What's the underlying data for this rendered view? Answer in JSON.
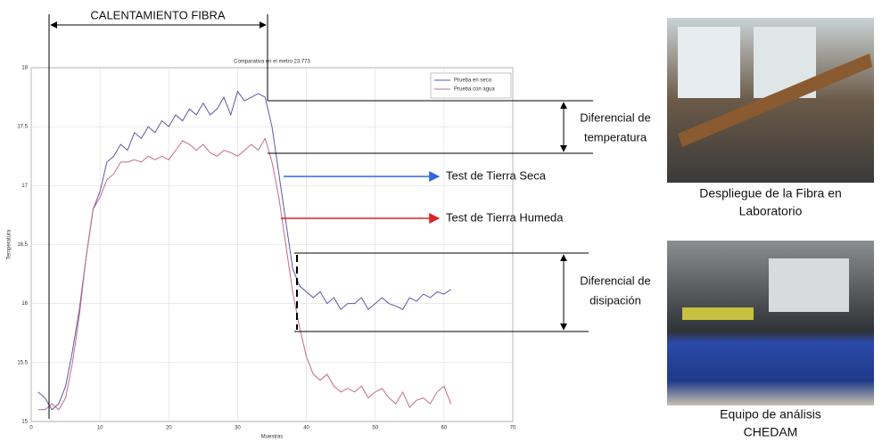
{
  "chart_data": {
    "type": "line",
    "title": "Comparativa en el metro 23.773",
    "x_label": "Muestras",
    "y_label": "Temperatura",
    "x": [
      1,
      2,
      3,
      4,
      5,
      6,
      7,
      8,
      9,
      10,
      11,
      12,
      13,
      14,
      15,
      16,
      17,
      18,
      19,
      20,
      21,
      22,
      23,
      24,
      25,
      26,
      27,
      28,
      29,
      30,
      31,
      32,
      33,
      34,
      35,
      36,
      37,
      38,
      39,
      40,
      41,
      42,
      43,
      44,
      45,
      46,
      47,
      48,
      49,
      50,
      51,
      52,
      53,
      54,
      55,
      56,
      57,
      58,
      59,
      60,
      61
    ],
    "series": [
      {
        "name": "Prueba en seco",
        "color": "#5a5aa8",
        "values": [
          15.25,
          15.2,
          15.1,
          15.15,
          15.3,
          15.6,
          15.95,
          16.4,
          16.8,
          16.95,
          17.2,
          17.25,
          17.35,
          17.3,
          17.45,
          17.4,
          17.5,
          17.45,
          17.55,
          17.5,
          17.6,
          17.55,
          17.65,
          17.6,
          17.7,
          17.6,
          17.65,
          17.75,
          17.6,
          17.8,
          17.72,
          17.75,
          17.78,
          17.75,
          17.5,
          17.1,
          16.7,
          16.3,
          16.15,
          16.1,
          16.05,
          16.1,
          16.0,
          16.05,
          15.95,
          16.0,
          16.0,
          16.05,
          15.95,
          16.0,
          16.05,
          16.0,
          15.98,
          15.95,
          16.05,
          16.02,
          16.08,
          16.05,
          16.1,
          16.08,
          16.12
        ]
      },
      {
        "name": "Prueba con agua",
        "color": "#c46a8a",
        "values": [
          15.1,
          15.1,
          15.15,
          15.1,
          15.2,
          15.5,
          15.9,
          16.4,
          16.8,
          16.9,
          17.05,
          17.1,
          17.2,
          17.2,
          17.22,
          17.2,
          17.25,
          17.22,
          17.25,
          17.22,
          17.3,
          17.38,
          17.35,
          17.3,
          17.35,
          17.28,
          17.25,
          17.3,
          17.28,
          17.25,
          17.3,
          17.35,
          17.3,
          17.4,
          17.2,
          16.9,
          16.5,
          16.1,
          15.8,
          15.55,
          15.4,
          15.35,
          15.4,
          15.3,
          15.25,
          15.28,
          15.25,
          15.3,
          15.2,
          15.25,
          15.28,
          15.2,
          15.15,
          15.25,
          15.12,
          15.18,
          15.2,
          15.15,
          15.25,
          15.3,
          15.15
        ]
      }
    ],
    "xlim": [
      0,
      70
    ],
    "xticks": [
      0,
      10,
      20,
      30,
      40,
      50,
      60,
      70
    ],
    "ylim": [
      15,
      18
    ],
    "yticks": [
      15,
      15.5,
      16,
      16.5,
      17,
      17.5,
      18
    ],
    "grid": true,
    "legend": "upper right"
  },
  "figure": {
    "heating": "CALENTAMIENTO FIBRA",
    "temp_diff": [
      "Diferencial de",
      "temperatura"
    ],
    "dry_test": "Test de Tierra Seca",
    "wet_test": "Test de Tierra Humeda",
    "dissipation_diff": [
      "Diferencial de",
      "disipación"
    ],
    "photo1_caption": [
      "Despliegue de la Fibra en",
      "Laboratorio"
    ],
    "photo2_caption": [
      "Equipo de análisis",
      "CHEDAM"
    ]
  }
}
